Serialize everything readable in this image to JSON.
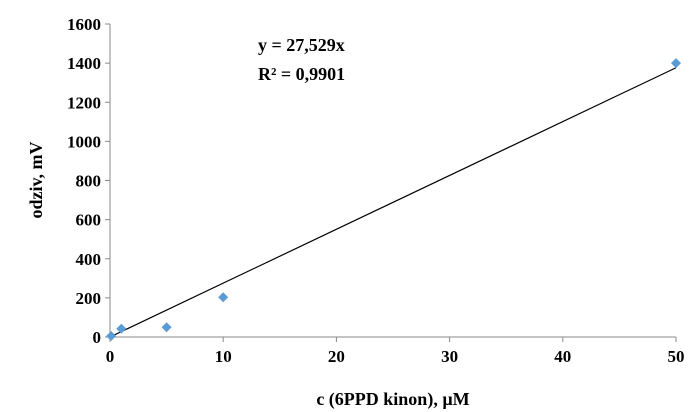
{
  "chart_data": {
    "type": "scatter",
    "title": "",
    "xlabel": "c (6PPD kinon),  µM",
    "ylabel": "odziv, mV",
    "xlim": [
      0,
      50
    ],
    "ylim": [
      0,
      1600
    ],
    "xticks": [
      0,
      10,
      20,
      30,
      40,
      50
    ],
    "yticks": [
      0,
      200,
      400,
      600,
      800,
      1000,
      1200,
      1400,
      1600
    ],
    "grid": false,
    "legend": "none",
    "marker_color": "#5B9BD5",
    "series": [
      {
        "x": [
          0.1,
          1,
          5,
          10,
          50
        ],
        "y": [
          5,
          42,
          50,
          203,
          1400
        ]
      }
    ],
    "trendline": {
      "type": "linear-through-origin",
      "slope": 27.529,
      "equation_label": "y = 27,529x",
      "r2_label": "R² = 0,9901"
    }
  }
}
